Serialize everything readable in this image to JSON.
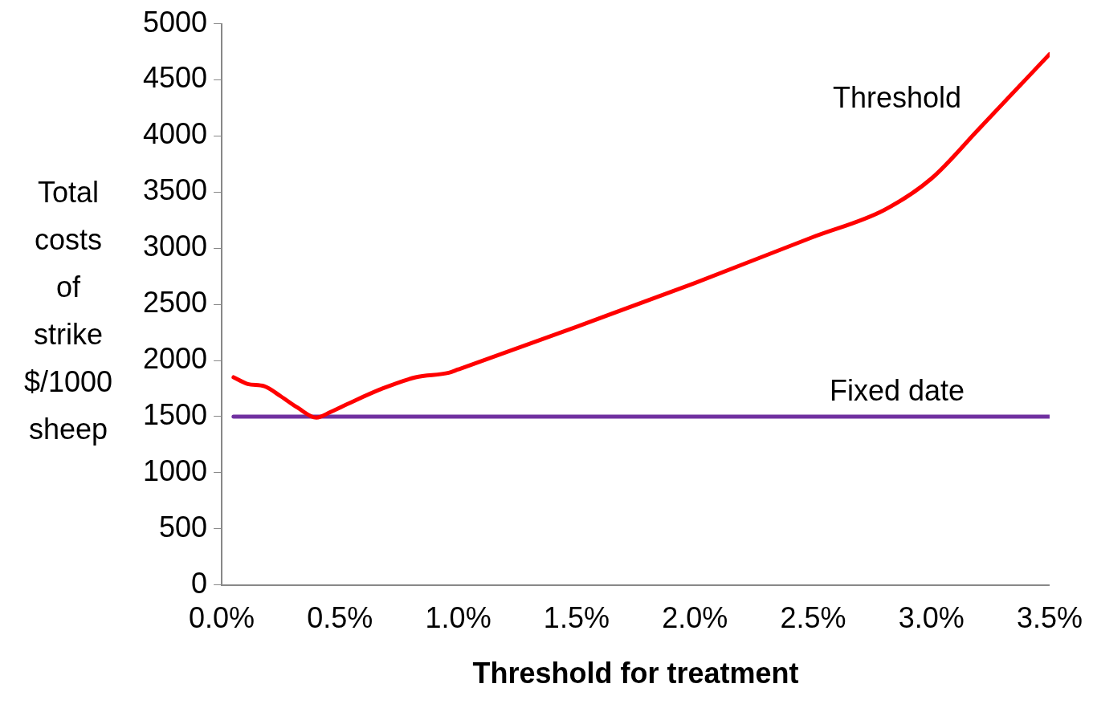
{
  "chart_data": {
    "type": "line",
    "xlabel": "Threshold for treatment",
    "ylabel": "Total costs of strike $/1000 sheep",
    "xlim": [
      0,
      3.5
    ],
    "xticks": [
      {
        "value": 0,
        "label": "0.0%"
      },
      {
        "value": 0.5,
        "label": "0.5%"
      },
      {
        "value": 1,
        "label": "1.0%"
      },
      {
        "value": 1.5,
        "label": "1.5%"
      },
      {
        "value": 2,
        "label": "2.0%"
      },
      {
        "value": 2.5,
        "label": "2.5%"
      },
      {
        "value": 3,
        "label": "3.0%"
      },
      {
        "value": 3.5,
        "label": "3.5%"
      }
    ],
    "ylim": [
      0,
      5000
    ],
    "yticks": [
      0,
      500,
      1000,
      1500,
      2000,
      2500,
      3000,
      3500,
      4000,
      4500,
      5000
    ],
    "grid": false,
    "legend": false,
    "marker": "none",
    "line_style": "solid",
    "series": [
      {
        "name": "Threshold",
        "color": "#ff0000",
        "x": [
          0.05,
          0.11,
          0.18,
          0.25,
          0.32,
          0.4,
          0.46,
          0.53,
          0.68,
          0.82,
          0.96,
          1.0,
          1.5,
          2.0,
          2.5,
          2.8,
          3.0,
          3.2,
          3.5
        ],
        "values": [
          1850,
          1790,
          1770,
          1680,
          1580,
          1490,
          1540,
          1610,
          1750,
          1850,
          1890,
          1920,
          2300,
          2690,
          3100,
          3340,
          3620,
          4060,
          4730
        ]
      },
      {
        "name": "Fixed date",
        "color": "#7030a0",
        "x": [
          0.05,
          3.5
        ],
        "values": [
          1500,
          1500
        ]
      }
    ]
  }
}
